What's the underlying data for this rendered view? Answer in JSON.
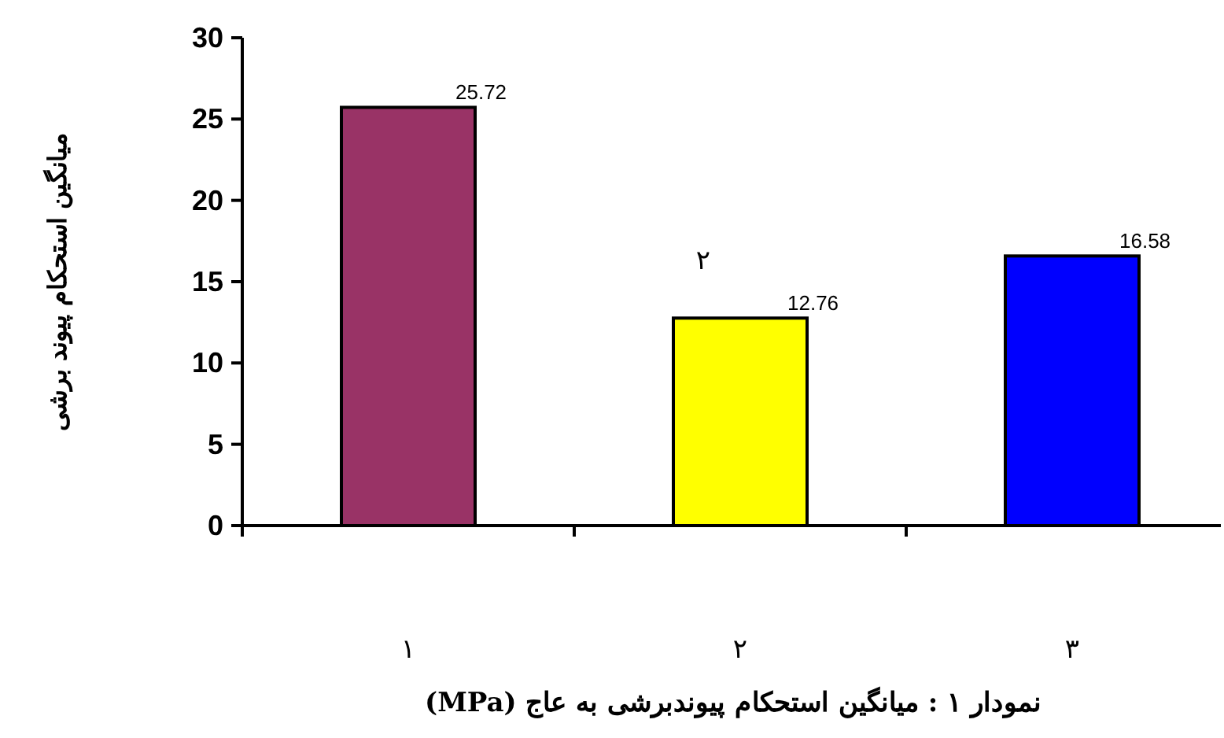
{
  "chart_data": {
    "type": "bar",
    "title": "نمودار ۱ : میانگین استحکام پیوندبرشی به عاج (MPa)",
    "ylabel": "میانگین استحکام پیوند برشی",
    "categories": [
      "۱",
      "۲",
      "۳"
    ],
    "values": [
      25.72,
      12.76,
      16.58
    ],
    "colors": [
      "#993366",
      "#ffff00",
      "#0000ff"
    ],
    "ylim": [
      0,
      30
    ],
    "yticks": [
      0,
      5,
      10,
      15,
      20,
      25,
      30
    ],
    "data_labels": true,
    "annotations": [
      "۲"
    ]
  }
}
